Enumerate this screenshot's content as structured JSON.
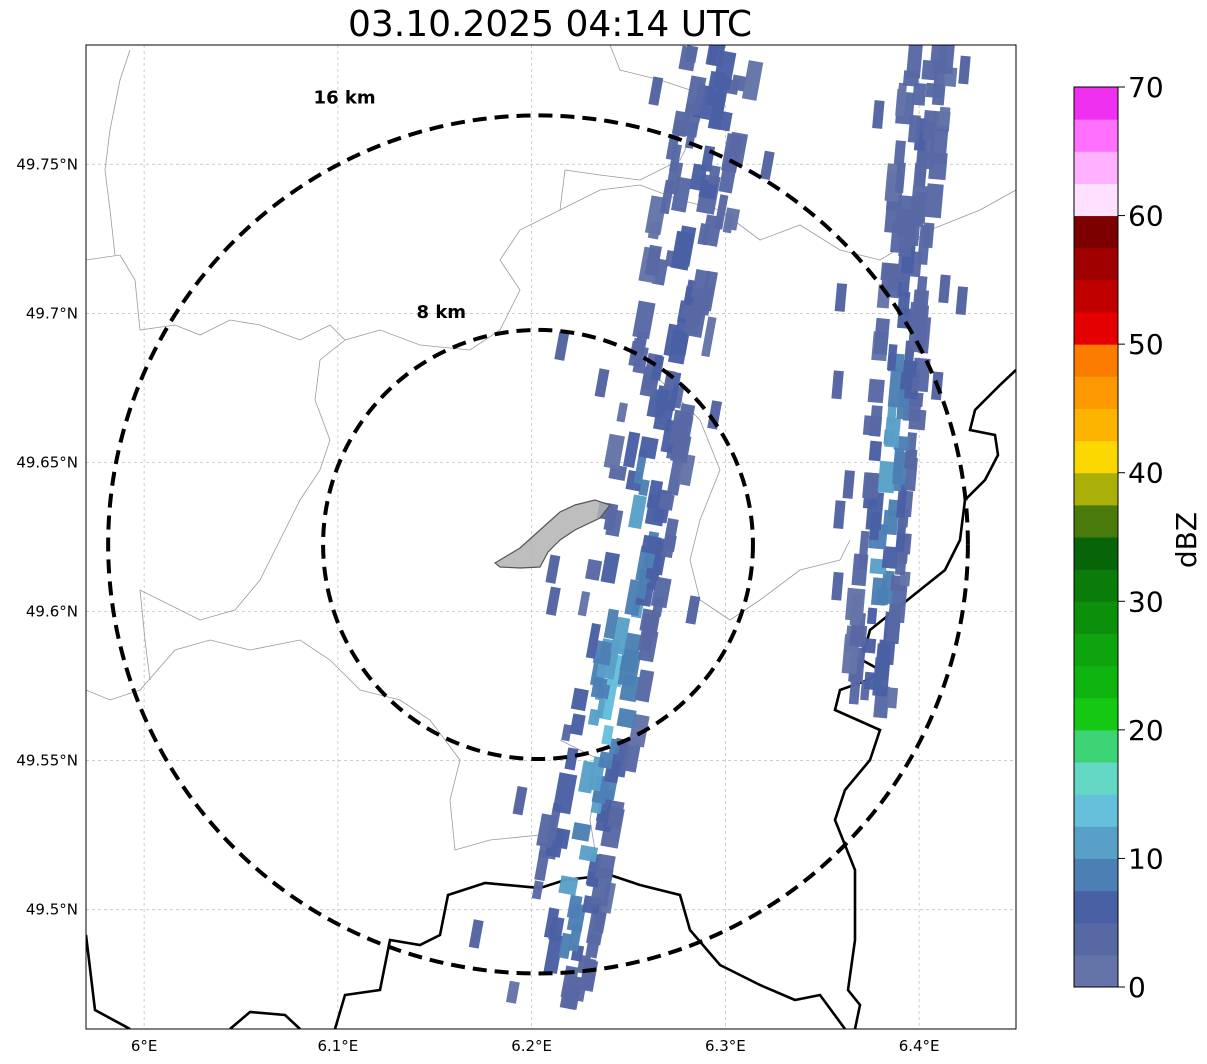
{
  "title": "03.10.2025 04:14 UTC",
  "map": {
    "lon_range": [
      5.97,
      6.45
    ],
    "lat_range": [
      49.46,
      49.79
    ],
    "lon_ticks": [
      6.0,
      6.1,
      6.2,
      6.3,
      6.4
    ],
    "lon_tick_labels": [
      "6°E",
      "6.1°E",
      "6.2°E",
      "6.3°E",
      "6.4°E"
    ],
    "lat_ticks": [
      49.5,
      49.55,
      49.6,
      49.65,
      49.7,
      49.75
    ],
    "lat_tick_labels": [
      "49.5°N",
      "49.55°N",
      "49.6°N",
      "49.65°N",
      "49.7°N",
      "49.75°N"
    ],
    "grid": true,
    "center": {
      "lon": 6.2033,
      "lat": 49.6225
    },
    "range_rings": [
      {
        "radius_km": 8,
        "label": "8 km"
      },
      {
        "radius_km": 16,
        "label": "16 km"
      }
    ],
    "city_outline_color": "#b3b3b3"
  },
  "colorbar": {
    "label": "dBZ",
    "vmin": 0,
    "vmax": 70,
    "step": 2.5,
    "tick_values": [
      0,
      10,
      20,
      30,
      40,
      50,
      60,
      70
    ],
    "tick_labels": [
      "0",
      "10",
      "20",
      "30",
      "40",
      "50",
      "60",
      "70"
    ],
    "colors": [
      "#6474a8",
      "#5868a4",
      "#4a60a4",
      "#4c80b4",
      "#58a0c8",
      "#66c0dc",
      "#64d8c4",
      "#3cd474",
      "#14c814",
      "#10b410",
      "#0ea40e",
      "#0c900c",
      "#0a7c0a",
      "#086408",
      "#4a7a0c",
      "#aab008",
      "#fcd800",
      "#fcb400",
      "#fc9800",
      "#fc7c00",
      "#e40000",
      "#c00000",
      "#a00000",
      "#7c0000",
      "#ffe0ff",
      "#ffb0ff",
      "#ff70ff",
      "#f030f0"
    ]
  },
  "chart_data": {
    "type": "heatmap",
    "title": "03.10.2025 04:14 UTC",
    "xlabel": "",
    "ylabel": "",
    "xlim": [
      5.97,
      6.45
    ],
    "ylim": [
      49.46,
      49.79
    ],
    "units": "dBZ",
    "echo_bands": [
      {
        "start": [
          6.21,
          49.47
        ],
        "end": [
          6.3,
          49.79
        ],
        "width_deg": 0.04,
        "min_dbz": 2,
        "peak_dbz": 17
      },
      {
        "start": [
          6.375,
          49.57
        ],
        "end": [
          6.405,
          49.79
        ],
        "width_deg": 0.025,
        "min_dbz": 2,
        "peak_dbz": 14
      }
    ]
  }
}
